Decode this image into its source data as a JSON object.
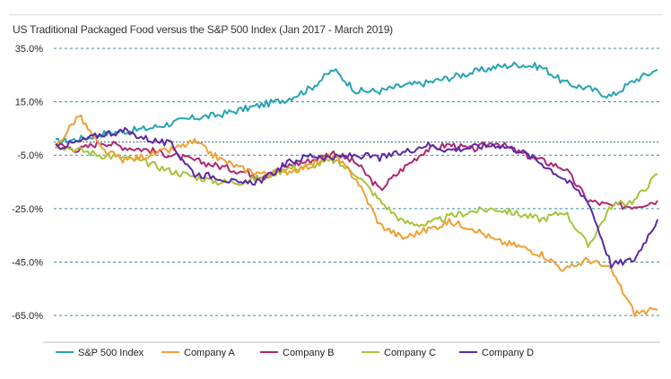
{
  "chart_data": {
    "type": "line",
    "title": "US Traditional Packaged Food versus the S&P 500 Index (Jan 2017 -  March 2019)",
    "xlabel": "",
    "ylabel": "",
    "x_range": [
      "Jan 2017",
      "March 2019"
    ],
    "ylim": [
      -75,
      38
    ],
    "y_ticks": [
      35,
      15,
      -5,
      -25,
      -45,
      -65
    ],
    "y_tick_labels": [
      "35.0%",
      "15.0%",
      "-5.0%",
      "-25.0%",
      "-45.0%",
      "-65.0%"
    ],
    "grid": "horizontal dashed",
    "legend_position": "bottom",
    "x": [
      0,
      1,
      2,
      3,
      4,
      5,
      6,
      7,
      8,
      9,
      10,
      11,
      12,
      13,
      14,
      15,
      16,
      17,
      18,
      19,
      20,
      21,
      22,
      23,
      24,
      25,
      26
    ],
    "series": [
      {
        "name": "S&P 500 Index",
        "color": "#26a3b4",
        "values": [
          0,
          1,
          3,
          4,
          5,
          7,
          9,
          10,
          12,
          14,
          16,
          20,
          27,
          19,
          19,
          21,
          22,
          24,
          26,
          28,
          29,
          28,
          22,
          20,
          17,
          23,
          27
        ]
      },
      {
        "name": "Company A",
        "color": "#f0a035",
        "values": [
          -2,
          10,
          -3,
          -7,
          -5,
          -3,
          0,
          -6,
          -10,
          -12,
          -11,
          -9,
          -5,
          -14,
          -31,
          -36,
          -33,
          -30,
          -32,
          -37,
          -39,
          -42,
          -48,
          -44,
          -48,
          -64,
          -63
        ]
      },
      {
        "name": "Company B",
        "color": "#b02770",
        "values": [
          -1,
          -3,
          0,
          -2,
          -3,
          -5,
          -7,
          -9,
          -11,
          -13,
          -9,
          -7,
          -4,
          -8,
          -18,
          -10,
          -3,
          -1,
          -3,
          0,
          -4,
          -7,
          -10,
          -22,
          -24,
          -24,
          -22
        ]
      },
      {
        "name": "Company C",
        "color": "#a8c23a",
        "values": [
          -1,
          -3,
          -5,
          -6,
          -8,
          -11,
          -13,
          -15,
          -15,
          -13,
          -10,
          -9,
          -7,
          -12,
          -22,
          -30,
          -31,
          -28,
          -26,
          -25,
          -27,
          -29,
          -26,
          -39,
          -24,
          -22,
          -12
        ]
      },
      {
        "name": "Company D",
        "color": "#5c2aa6",
        "values": [
          -2,
          0,
          3,
          4,
          1,
          -1,
          -12,
          -13,
          -16,
          -14,
          -8,
          -5,
          -6,
          -5,
          -6,
          -4,
          -1,
          -3,
          -2,
          -1,
          -3,
          -8,
          -14,
          -22,
          -46,
          -44,
          -29
        ]
      }
    ]
  }
}
